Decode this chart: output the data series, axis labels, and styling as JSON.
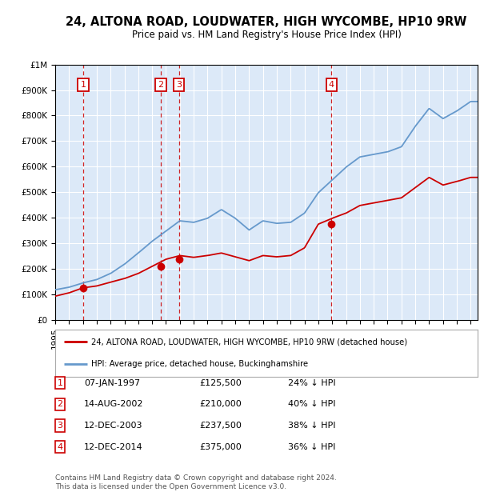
{
  "title": "24, ALTONA ROAD, LOUDWATER, HIGH WYCOMBE, HP10 9RW",
  "subtitle": "Price paid vs. HM Land Registry's House Price Index (HPI)",
  "transactions": [
    {
      "num": 1,
      "date": "1997-01-07",
      "price": 125500
    },
    {
      "num": 2,
      "date": "2002-08-14",
      "price": 210000
    },
    {
      "num": 3,
      "date": "2003-12-12",
      "price": 237500
    },
    {
      "num": 4,
      "date": "2014-12-12",
      "price": 375000
    }
  ],
  "legend_line1": "24, ALTONA ROAD, LOUDWATER, HIGH WYCOMBE, HP10 9RW (detached house)",
  "legend_line2": "HPI: Average price, detached house, Buckinghamshire",
  "table_rows": [
    {
      "num": 1,
      "date": "07-JAN-1997",
      "price": "£125,500",
      "hpi": "24% ↓ HPI"
    },
    {
      "num": 2,
      "date": "14-AUG-2002",
      "price": "£210,000",
      "hpi": "40% ↓ HPI"
    },
    {
      "num": 3,
      "date": "12-DEC-2003",
      "price": "£237,500",
      "hpi": "38% ↓ HPI"
    },
    {
      "num": 4,
      "date": "12-DEC-2014",
      "price": "£375,000",
      "hpi": "36% ↓ HPI"
    }
  ],
  "footer": "Contains HM Land Registry data © Crown copyright and database right 2024.\nThis data is licensed under the Open Government Licence v3.0.",
  "plot_bg_color": "#dce9f8",
  "red_line_color": "#cc0000",
  "blue_line_color": "#6699cc",
  "marker_box_color": "#cc0000",
  "vline_color": "#cc0000",
  "hpi_points": [
    [
      1995.0,
      118000
    ],
    [
      1996.0,
      128000
    ],
    [
      1997.0,
      145000
    ],
    [
      1998.0,
      158000
    ],
    [
      1999.0,
      182000
    ],
    [
      2000.0,
      218000
    ],
    [
      2001.0,
      262000
    ],
    [
      2002.0,
      308000
    ],
    [
      2003.0,
      348000
    ],
    [
      2004.0,
      388000
    ],
    [
      2005.0,
      382000
    ],
    [
      2006.0,
      398000
    ],
    [
      2007.0,
      432000
    ],
    [
      2008.0,
      398000
    ],
    [
      2009.0,
      352000
    ],
    [
      2010.0,
      388000
    ],
    [
      2011.0,
      378000
    ],
    [
      2012.0,
      382000
    ],
    [
      2013.0,
      418000
    ],
    [
      2014.0,
      498000
    ],
    [
      2015.0,
      548000
    ],
    [
      2016.0,
      598000
    ],
    [
      2017.0,
      638000
    ],
    [
      2018.0,
      648000
    ],
    [
      2019.0,
      658000
    ],
    [
      2020.0,
      678000
    ],
    [
      2021.0,
      758000
    ],
    [
      2022.0,
      828000
    ],
    [
      2023.0,
      788000
    ],
    [
      2024.0,
      818000
    ],
    [
      2025.0,
      855000
    ]
  ],
  "prop_points": [
    [
      1995.0,
      93000
    ],
    [
      1996.0,
      106000
    ],
    [
      1997.0,
      125500
    ],
    [
      1998.0,
      133000
    ],
    [
      1999.0,
      148000
    ],
    [
      2000.0,
      162000
    ],
    [
      2001.0,
      182000
    ],
    [
      2002.0,
      210000
    ],
    [
      2003.0,
      237500
    ],
    [
      2004.0,
      252000
    ],
    [
      2005.0,
      245000
    ],
    [
      2006.0,
      252000
    ],
    [
      2007.0,
      262000
    ],
    [
      2008.0,
      247000
    ],
    [
      2009.0,
      232000
    ],
    [
      2010.0,
      252000
    ],
    [
      2011.0,
      247000
    ],
    [
      2012.0,
      252000
    ],
    [
      2013.0,
      282000
    ],
    [
      2014.0,
      375000
    ],
    [
      2015.0,
      398000
    ],
    [
      2016.0,
      418000
    ],
    [
      2017.0,
      448000
    ],
    [
      2018.0,
      458000
    ],
    [
      2019.0,
      468000
    ],
    [
      2020.0,
      478000
    ],
    [
      2021.0,
      518000
    ],
    [
      2022.0,
      558000
    ],
    [
      2023.0,
      528000
    ],
    [
      2024.0,
      542000
    ],
    [
      2025.0,
      558000
    ]
  ],
  "trans_years": [
    1997.018,
    2002.619,
    2003.945,
    2014.945
  ],
  "trans_prices": [
    125500,
    210000,
    237500,
    375000
  ],
  "xlim": [
    1995,
    2025.5
  ],
  "ylim": [
    0,
    1000000
  ]
}
